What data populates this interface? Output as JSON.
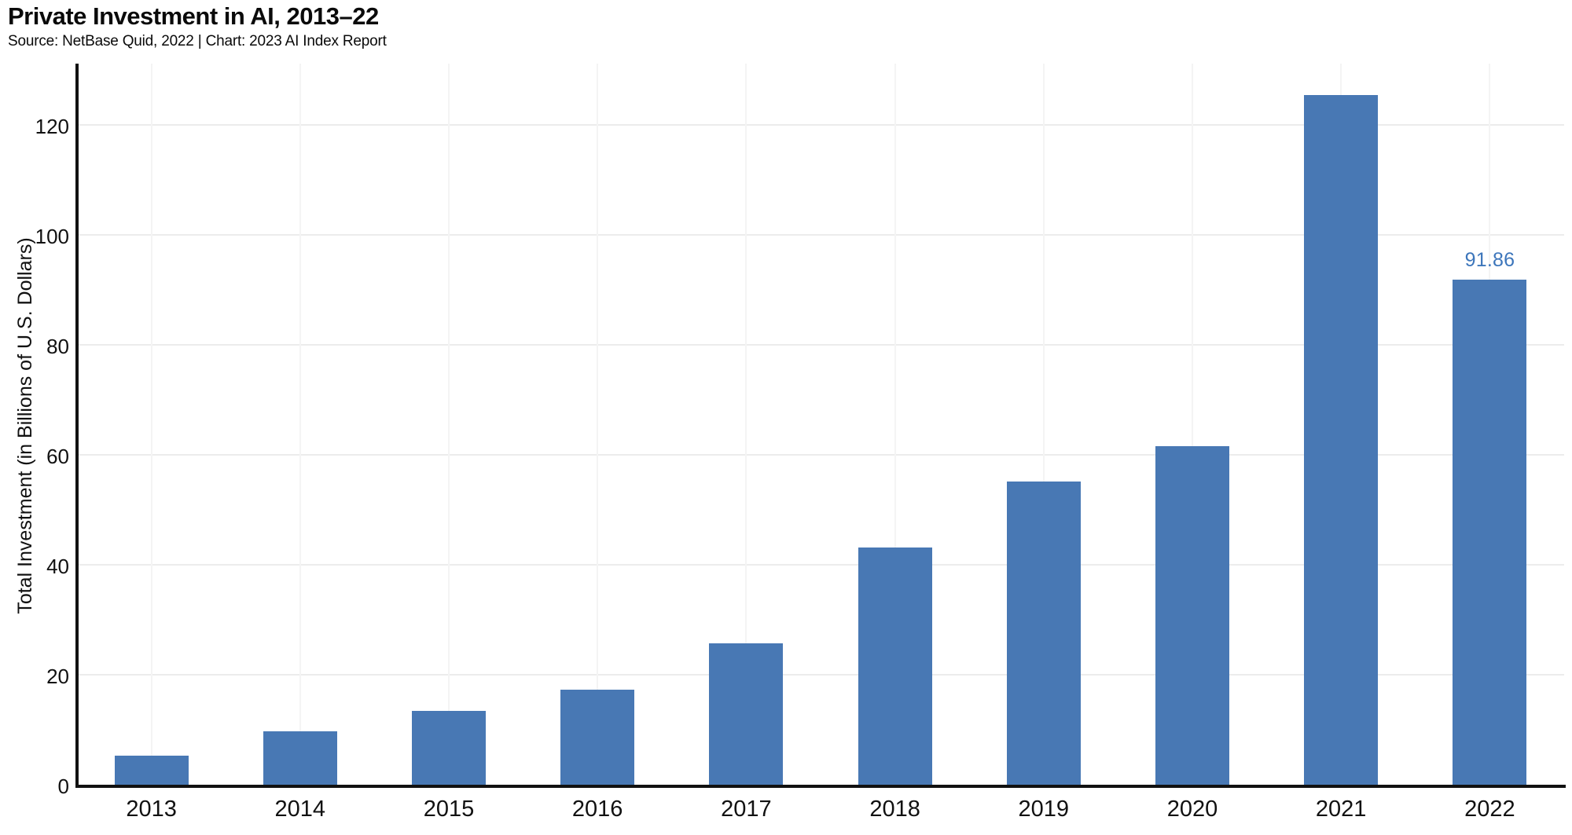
{
  "header": {
    "title": "Private Investment in AI, 2013–22",
    "subtitle": "Source: NetBase Quid, 2022 | Chart: 2023 AI Index Report"
  },
  "chart_data": {
    "type": "bar",
    "title": "Private Investment in AI, 2013–22",
    "categories": [
      "2013",
      "2014",
      "2015",
      "2016",
      "2017",
      "2018",
      "2019",
      "2020",
      "2021",
      "2022"
    ],
    "values": [
      5.3,
      9.7,
      13.5,
      17.3,
      25.7,
      43.1,
      55.1,
      61.6,
      125.4,
      91.86
    ],
    "xlabel": "",
    "ylabel": "Total Investment (in Billions of U.S. Dollars)",
    "yticks": [
      0,
      20,
      40,
      60,
      80,
      100,
      120
    ],
    "ylim": [
      0,
      131
    ],
    "grid": true,
    "legend_position": "none",
    "annotations": [
      {
        "category": "2022",
        "text": "91.86"
      }
    ],
    "colors": {
      "bar": "#4878b4",
      "annotation": "#3d76bb",
      "axis": "#111111",
      "gridline_horizontal": "#ececec",
      "gridline_vertical": "#f4f4f4",
      "text": "#111111"
    }
  }
}
